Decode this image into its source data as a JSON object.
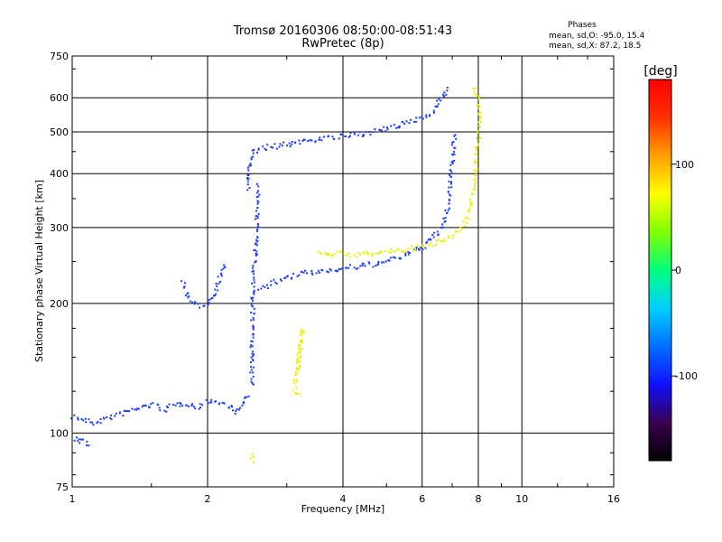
{
  "chart_data": {
    "type": "scatter",
    "title": "Tromsø 20160306 08:50:00-08:51:43",
    "subtitle": "RwPretec (8p)",
    "xlabel": "Frequency [MHz]",
    "ylabel": "Stationary phase Virtual Height [km]",
    "x_scale": "log",
    "y_scale": "log",
    "xlim": [
      1,
      16
    ],
    "ylim": [
      75,
      750
    ],
    "x_ticks": [
      1,
      2,
      4,
      6,
      8,
      10,
      16
    ],
    "y_ticks": [
      75,
      100,
      200,
      300,
      400,
      500,
      600,
      750
    ],
    "grid": true,
    "phases": {
      "header": "Phases",
      "line_o": "mean, sd,O: -95.0, 15.4",
      "line_x": "mean, sd,X:  87.2, 18.5"
    },
    "colorbar": {
      "label": "[deg]",
      "range": [
        -180,
        180
      ],
      "ticks": [
        100,
        0,
        -100
      ],
      "colors": [
        "#000000",
        "#3a0050",
        "#1010ff",
        "#0070ff",
        "#00d0ff",
        "#00ff80",
        "#80ff00",
        "#ffff00",
        "#ffa000",
        "#ff3000",
        "#ff0000"
      ]
    },
    "series": [
      {
        "name": "O",
        "color": "#1a3cff",
        "segments": [
          [
            [
              1.0,
              110
            ],
            [
              1.05,
              108
            ],
            [
              1.1,
              106
            ],
            [
              1.2,
              109
            ],
            [
              1.3,
              112
            ],
            [
              1.4,
              115
            ],
            [
              1.5,
              117
            ],
            [
              1.6,
              114
            ],
            [
              1.7,
              117
            ],
            [
              1.8,
              118
            ],
            [
              1.9,
              115
            ],
            [
              2.0,
              120
            ],
            [
              2.1,
              118
            ],
            [
              2.2,
              117
            ],
            [
              2.3,
              112
            ],
            [
              2.4,
              118
            ],
            [
              2.45,
              125
            ]
          ],
          [
            [
              1.0,
              97
            ],
            [
              1.05,
              96
            ],
            [
              1.08,
              95
            ],
            [
              1.1,
              94
            ]
          ],
          [
            [
              1.75,
              226
            ],
            [
              1.8,
              210
            ],
            [
              1.85,
              200
            ],
            [
              1.9,
              198
            ],
            [
              2.0,
              202
            ],
            [
              2.05,
              210
            ],
            [
              2.1,
              225
            ],
            [
              2.15,
              245
            ],
            [
              2.2,
              240
            ]
          ],
          [
            [
              2.5,
              130
            ],
            [
              2.5,
              150
            ],
            [
              2.5,
              175
            ],
            [
              2.51,
              200
            ],
            [
              2.52,
              230
            ],
            [
              2.55,
              270
            ],
            [
              2.57,
              330
            ],
            [
              2.58,
              380
            ]
          ],
          [
            [
              2.45,
              370
            ],
            [
              2.47,
              420
            ],
            [
              2.5,
              450
            ],
            [
              2.6,
              460
            ],
            [
              2.8,
              465
            ],
            [
              3.0,
              470
            ],
            [
              3.3,
              480
            ],
            [
              3.6,
              485
            ],
            [
              4.0,
              490
            ],
            [
              4.5,
              500
            ],
            [
              5.0,
              510
            ],
            [
              5.5,
              525
            ],
            [
              6.0,
              545
            ],
            [
              6.3,
              560
            ],
            [
              6.5,
              590
            ],
            [
              6.7,
              620
            ],
            [
              6.9,
              640
            ]
          ],
          [
            [
              2.6,
              215
            ],
            [
              2.8,
              225
            ],
            [
              3.0,
              230
            ],
            [
              3.2,
              235
            ],
            [
              3.5,
              238
            ],
            [
              4.0,
              242
            ],
            [
              4.5,
              246
            ],
            [
              5.0,
              252
            ],
            [
              5.5,
              260
            ],
            [
              6.0,
              272
            ],
            [
              6.3,
              285
            ],
            [
              6.6,
              300
            ],
            [
              6.8,
              330
            ],
            [
              6.9,
              380
            ],
            [
              7.0,
              440
            ],
            [
              7.05,
              500
            ]
          ]
        ]
      },
      {
        "name": "X",
        "color": "#e8f000",
        "segments": [
          [
            [
              3.5,
              265
            ],
            [
              3.8,
              262
            ],
            [
              4.2,
              260
            ],
            [
              4.6,
              262
            ],
            [
              5.0,
              265
            ],
            [
              5.5,
              268
            ],
            [
              6.0,
              272
            ],
            [
              6.5,
              280
            ],
            [
              7.0,
              290
            ],
            [
              7.5,
              310
            ],
            [
              7.8,
              380
            ],
            [
              7.9,
              450
            ],
            [
              8.0,
              520
            ],
            [
              8.0,
              600
            ],
            [
              7.7,
              640
            ]
          ],
          [
            [
              2.5,
              90
            ],
            [
              2.51,
              86
            ]
          ],
          [
            [
              3.15,
              140
            ],
            [
              3.2,
              160
            ],
            [
              3.25,
              175
            ],
            [
              3.1,
              125
            ],
            [
              3.2,
              123
            ]
          ]
        ]
      }
    ]
  }
}
